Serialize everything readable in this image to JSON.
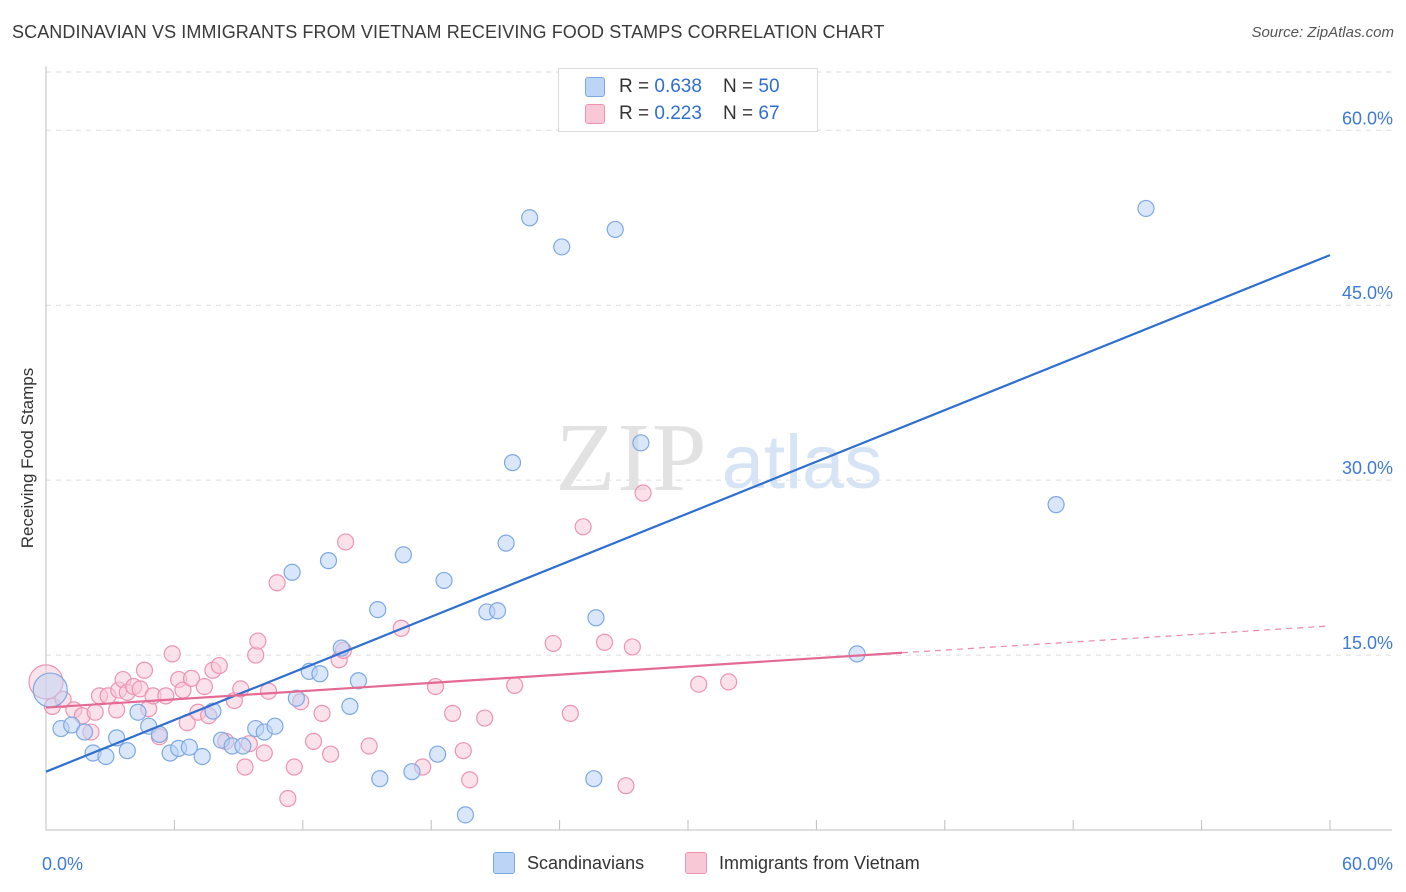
{
  "header": {
    "title": "SCANDINAVIAN VS IMMIGRANTS FROM VIETNAM RECEIVING FOOD STAMPS CORRELATION CHART",
    "source": "Source: ZipAtlas.com"
  },
  "watermark": {
    "zip": "ZIP",
    "atlas": "atlas"
  },
  "legend_top": {
    "rows": [
      {
        "r_label": "R = ",
        "r_value": "0.638",
        "n_label": "N = ",
        "n_value": "50"
      },
      {
        "r_label": "R = ",
        "r_value": "0.223",
        "n_label": "N = ",
        "n_value": "67"
      }
    ]
  },
  "colors": {
    "blue_fill": "#bcd4f5",
    "blue_stroke": "#7ea8e3",
    "blue_line": "#2f6fd0",
    "pink_fill": "#f8c8d7",
    "pink_stroke": "#ec94b2",
    "pink_line": "#e46a94",
    "axis_text": "#3d7bd6",
    "grid": "#dddddd"
  },
  "chart_data": {
    "type": "scatter",
    "title": "SCANDINAVIAN VS IMMIGRANTS FROM VIETNAM RECEIVING FOOD STAMPS CORRELATION CHART",
    "xlabel": "",
    "ylabel": "Receiving Food Stamps",
    "xlim": [
      0,
      60
    ],
    "ylim": [
      0,
      65
    ],
    "x_tick_labels": [
      "0.0%",
      "60.0%"
    ],
    "y_ticks": [
      15,
      30,
      45,
      60
    ],
    "y_tick_labels": [
      "15.0%",
      "30.0%",
      "45.0%",
      "60.0%"
    ],
    "grid": true,
    "legend": "top-center",
    "series": [
      {
        "name": "Scandinavians",
        "R": 0.638,
        "N": 50,
        "trend": {
          "x0": 0,
          "y0": 5.0,
          "x1": 60,
          "y1": 49.3
        },
        "points": [
          [
            0.2,
            12.0,
            "big"
          ],
          [
            0.7,
            8.7
          ],
          [
            1.2,
            9.0
          ],
          [
            1.8,
            8.4
          ],
          [
            2.2,
            6.6
          ],
          [
            2.8,
            6.3
          ],
          [
            3.3,
            7.9
          ],
          [
            3.8,
            6.8
          ],
          [
            4.3,
            10.1
          ],
          [
            4.8,
            8.9
          ],
          [
            5.3,
            8.2
          ],
          [
            5.8,
            6.6
          ],
          [
            6.2,
            7.0
          ],
          [
            6.7,
            7.1
          ],
          [
            7.3,
            6.3
          ],
          [
            7.8,
            10.2
          ],
          [
            8.2,
            7.7
          ],
          [
            8.7,
            7.2
          ],
          [
            9.2,
            7.2
          ],
          [
            9.8,
            8.7
          ],
          [
            10.2,
            8.4
          ],
          [
            10.7,
            8.9
          ],
          [
            11.5,
            22.1
          ],
          [
            11.7,
            11.3
          ],
          [
            12.3,
            13.6
          ],
          [
            12.8,
            13.4
          ],
          [
            13.2,
            23.1
          ],
          [
            13.8,
            15.6
          ],
          [
            14.2,
            10.6
          ],
          [
            14.6,
            12.8
          ],
          [
            15.5,
            18.9
          ],
          [
            15.6,
            4.4
          ],
          [
            16.7,
            23.6
          ],
          [
            17.1,
            5.0
          ],
          [
            18.3,
            6.5
          ],
          [
            18.6,
            21.4
          ],
          [
            19.6,
            1.3
          ],
          [
            20.6,
            18.7
          ],
          [
            21.1,
            18.8
          ],
          [
            21.5,
            24.6
          ],
          [
            21.8,
            31.5
          ],
          [
            22.6,
            52.5
          ],
          [
            24.1,
            50.0
          ],
          [
            25.6,
            4.4
          ],
          [
            25.7,
            18.2
          ],
          [
            26.6,
            51.5
          ],
          [
            27.8,
            33.2
          ],
          [
            37.9,
            15.1
          ],
          [
            47.2,
            27.9
          ],
          [
            51.4,
            53.3
          ]
        ]
      },
      {
        "name": "Immigrants from Vietnam",
        "R": 0.223,
        "N": 67,
        "trend": {
          "x0": 0,
          "y0": 10.5,
          "x1": 40,
          "y1": 15.2,
          "dash_to_x": 60,
          "dash_to_y": 17.5
        },
        "points": [
          [
            0.0,
            12.7,
            "big"
          ],
          [
            0.3,
            10.6
          ],
          [
            0.8,
            11.2
          ],
          [
            1.3,
            10.3
          ],
          [
            1.7,
            9.8
          ],
          [
            2.1,
            8.4
          ],
          [
            2.3,
            10.1
          ],
          [
            2.5,
            11.5
          ],
          [
            2.9,
            11.5
          ],
          [
            3.3,
            10.3
          ],
          [
            3.4,
            12.0
          ],
          [
            3.6,
            12.9
          ],
          [
            3.8,
            11.8
          ],
          [
            4.1,
            12.3
          ],
          [
            4.4,
            12.1
          ],
          [
            4.6,
            13.7
          ],
          [
            4.8,
            10.4
          ],
          [
            5.0,
            11.5
          ],
          [
            5.3,
            8.0
          ],
          [
            5.6,
            11.5
          ],
          [
            5.9,
            15.1
          ],
          [
            6.2,
            12.9
          ],
          [
            6.4,
            12.0
          ],
          [
            6.6,
            9.2
          ],
          [
            6.8,
            13.0
          ],
          [
            7.1,
            10.1
          ],
          [
            7.4,
            12.3
          ],
          [
            7.6,
            9.8
          ],
          [
            7.8,
            13.7
          ],
          [
            8.1,
            14.1
          ],
          [
            8.4,
            7.6
          ],
          [
            8.8,
            11.1
          ],
          [
            9.1,
            12.1
          ],
          [
            9.3,
            5.4
          ],
          [
            9.5,
            7.4
          ],
          [
            9.8,
            15.0
          ],
          [
            9.9,
            16.2
          ],
          [
            10.2,
            6.6
          ],
          [
            10.4,
            11.9
          ],
          [
            10.8,
            21.2
          ],
          [
            11.3,
            2.7
          ],
          [
            11.6,
            5.4
          ],
          [
            11.9,
            11.0
          ],
          [
            12.5,
            7.6
          ],
          [
            12.9,
            10.0
          ],
          [
            13.3,
            6.5
          ],
          [
            13.7,
            14.6
          ],
          [
            13.9,
            15.4
          ],
          [
            14.0,
            24.7
          ],
          [
            15.1,
            7.2
          ],
          [
            16.6,
            17.3
          ],
          [
            17.6,
            5.4
          ],
          [
            18.2,
            12.3
          ],
          [
            19.0,
            10.0
          ],
          [
            19.5,
            6.8
          ],
          [
            19.8,
            4.3
          ],
          [
            20.5,
            9.6
          ],
          [
            21.9,
            12.4
          ],
          [
            23.7,
            16.0
          ],
          [
            24.5,
            10.0
          ],
          [
            25.1,
            26.0
          ],
          [
            26.1,
            16.1
          ],
          [
            27.1,
            3.8
          ],
          [
            27.4,
            15.7
          ],
          [
            27.9,
            28.9
          ],
          [
            30.5,
            12.5
          ],
          [
            31.9,
            12.7
          ]
        ]
      }
    ]
  },
  "legend_bottom": {
    "items": [
      {
        "label": "Scandinavians"
      },
      {
        "label": "Immigrants from Vietnam"
      }
    ]
  }
}
